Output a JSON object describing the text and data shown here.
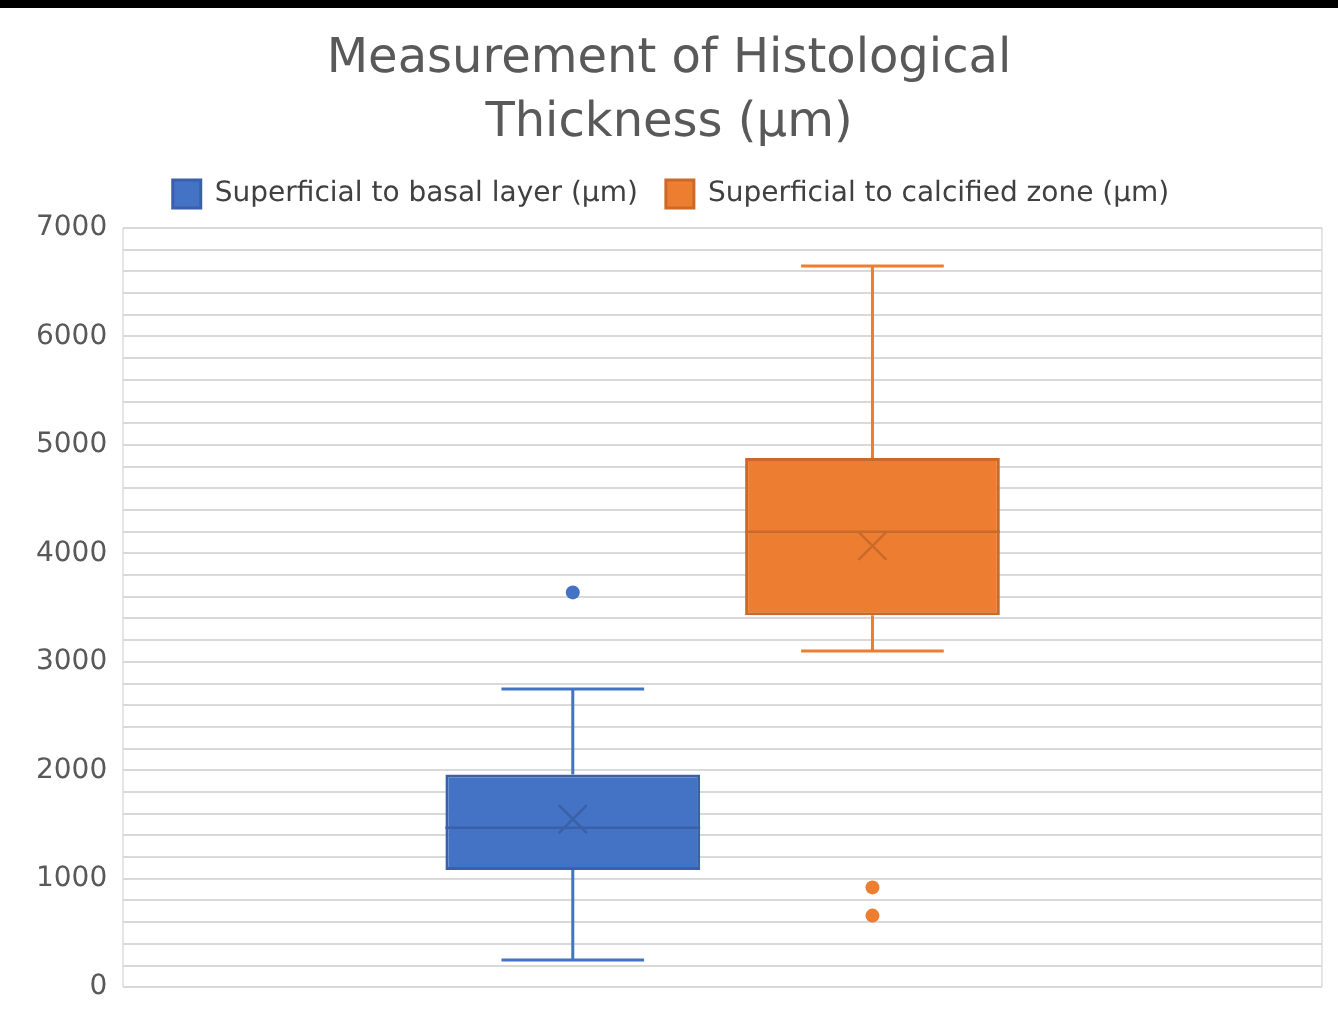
{
  "chart_data": {
    "type": "box",
    "title": "Measurement of Histological Thickness (µm)",
    "categories": [
      null
    ],
    "series": [
      {
        "name": "Superficial to basal layer (µm)",
        "color": "#4472c4",
        "boxes": [
          {
            "low": 250,
            "q1": 1080,
            "median": 1470,
            "q3": 1960,
            "high": 2750,
            "mean": 1550,
            "outliers": [
              3640
            ]
          }
        ]
      },
      {
        "name": "Superficial to calcified zone (µm)",
        "color": "#ed7d31",
        "boxes": [
          {
            "low": 3100,
            "q1": 3430,
            "median": 4200,
            "q3": 4880,
            "high": 6650,
            "mean": 4070,
            "outliers": [
              920,
              660
            ]
          }
        ]
      }
    ],
    "ylim": [
      0,
      7000
    ],
    "yticks": [
      0,
      {
        "value": 200,
        "label": null
      },
      {
        "value": 400,
        "label": null
      },
      {
        "value": 600,
        "label": null
      },
      {
        "value": 800,
        "label": null
      },
      1000,
      {
        "value": 1200,
        "label": null
      },
      {
        "value": 1400,
        "label": null
      },
      {
        "value": 1600,
        "label": null
      },
      {
        "value": 1800,
        "label": null
      },
      2000,
      {
        "value": 2200,
        "label": null
      },
      {
        "value": 2400,
        "label": null
      },
      {
        "value": 2600,
        "label": null
      },
      {
        "value": 2800,
        "label": null
      },
      3000,
      {
        "value": 3200,
        "label": null
      },
      {
        "value": 3400,
        "label": null
      },
      {
        "value": 3600,
        "label": null
      },
      {
        "value": 3800,
        "label": null
      },
      4000,
      {
        "value": 4200,
        "label": null
      },
      {
        "value": 4400,
        "label": null
      },
      {
        "value": 4600,
        "label": null
      },
      {
        "value": 4800,
        "label": null
      },
      5000,
      {
        "value": 5200,
        "label": null
      },
      {
        "value": 5400,
        "label": null
      },
      {
        "value": 5600,
        "label": null
      },
      {
        "value": 5800,
        "label": null
      },
      6000,
      {
        "value": 6200,
        "label": null
      },
      {
        "value": 6400,
        "label": null
      },
      {
        "value": 6600,
        "label": null
      },
      {
        "value": 6800,
        "label": null
      },
      7000
    ],
    "grid": true,
    "legend": "top"
  }
}
